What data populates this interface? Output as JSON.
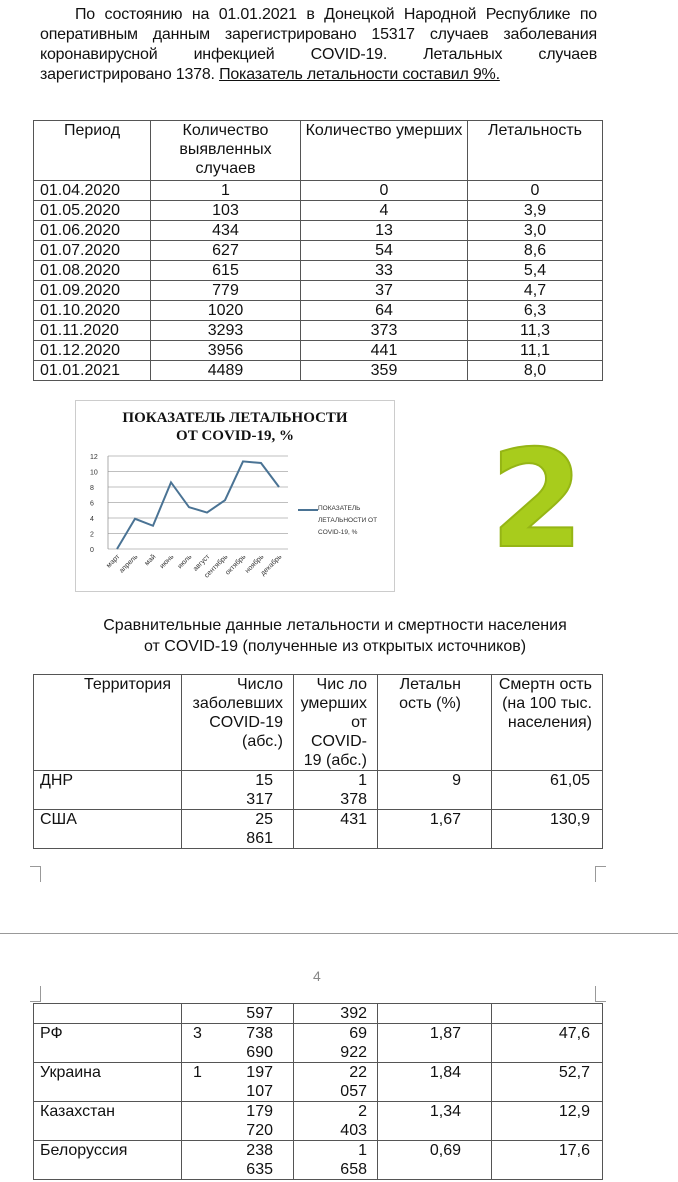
{
  "paragraph": {
    "text": "По состоянию на 01.01.2021 в Донецкой Народной Республике по оперативным данным зарегистрировано 15317 случаев заболевания коронавирусной инфекцией COVID-19. Летальных случаев зарегистрировано 1378. ",
    "underlined": "Показатель летальности составил 9%."
  },
  "table1": {
    "headers": [
      "Период",
      "Количество выявленных случаев",
      "Количество умерших",
      "Летальность"
    ],
    "rows": [
      [
        "01.04.2020",
        "1",
        "0",
        "0"
      ],
      [
        "01.05.2020",
        "103",
        "4",
        "3,9"
      ],
      [
        "01.06.2020",
        "434",
        "13",
        "3,0"
      ],
      [
        "01.07.2020",
        "627",
        "54",
        "8,6"
      ],
      [
        "01.08.2020",
        "615",
        "33",
        "5,4"
      ],
      [
        "01.09.2020",
        "779",
        "37",
        "4,7"
      ],
      [
        "01.10.2020",
        "1020",
        "64",
        "6,3"
      ],
      [
        "01.11.2020",
        "3293",
        "373",
        "11,3"
      ],
      [
        "01.12.2020",
        "3956",
        "441",
        "11,1"
      ],
      [
        "01.01.2021",
        "4489",
        "359",
        "8,0"
      ]
    ]
  },
  "chart_data": {
    "type": "line",
    "title": "ПОКАЗАТЕЛЬ ЛЕТАЛЬНОСТИ ОТ COVID-19, %",
    "categories": [
      "март",
      "апрель",
      "май",
      "июнь",
      "июль",
      "август",
      "сентябрь",
      "октябрь",
      "ноябрь",
      "декабрь"
    ],
    "series": [
      {
        "name": "ПОКАЗАТЕЛЬ ЛЕТАЛЬНОСТИ ОТ COVID-19, %",
        "values": [
          0,
          3.9,
          3.0,
          8.6,
          5.4,
          4.7,
          6.3,
          11.3,
          11.1,
          8.0
        ]
      }
    ],
    "yticks": [
      "0",
      "2",
      "4",
      "6",
      "8",
      "10",
      "12"
    ],
    "ylim": [
      0,
      12
    ],
    "grid": true,
    "legend": "right",
    "color": "#4a7394"
  },
  "badge": {
    "text": "2",
    "color": "#a8cc1c"
  },
  "caption": [
    "Сравнительные данные летальности и смертности населения",
    "от COVID-19 (полученные из открытых источников)"
  ],
  "table2": {
    "headers": [
      "Территория",
      "Число заболевших COVID-19 (абс.)",
      "Чис ло умерших от COVID-19 (абс.)",
      "Летальн ость (%)",
      "Смертн ость (на 100 тыс. населения)"
    ],
    "rows": [
      [
        "ДНР",
        "15 317",
        "1 378",
        "9",
        "61,05"
      ],
      [
        "США",
        "25 861",
        "431",
        "1,67",
        "130,9"
      ]
    ]
  },
  "page_number": "4",
  "table3": {
    "rows": [
      [
        "",
        "597",
        "392",
        "",
        ""
      ],
      [
        "РФ",
        "3 738 690",
        "69 922",
        "1,87",
        "47,6"
      ],
      [
        "Украина",
        "1 197 107",
        "22 057",
        "1,84",
        "52,7"
      ],
      [
        "Казахстан",
        "179 720",
        "2 403",
        "1,34",
        "12,9"
      ],
      [
        "Белоруссия",
        "238 635",
        "1 658",
        "0,69",
        "17,6"
      ]
    ]
  }
}
